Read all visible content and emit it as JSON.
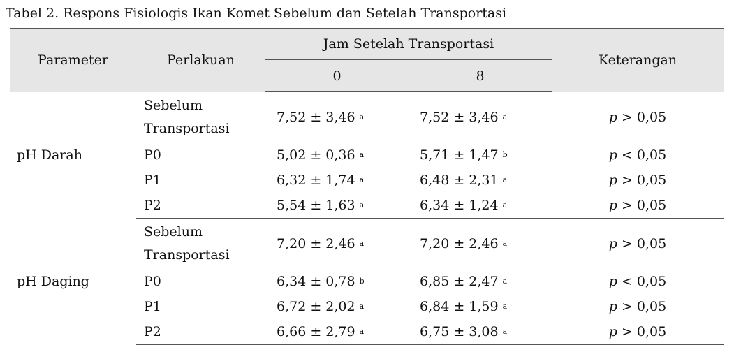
{
  "caption": "Tabel 2. Respons Fisiologis Ikan Komet Sebelum dan Setelah Transportasi",
  "table": {
    "header": {
      "parameter": "Parameter",
      "perlakuan": "Perlakuan",
      "group": "Jam Setelah Transportasi",
      "hours": [
        "0",
        "8"
      ],
      "keterangan": "Keterangan"
    },
    "groups": [
      {
        "parameter": "pH Darah",
        "rows": [
          {
            "perlakuan": "Sebelum Transportasi",
            "cells": [
              {
                "value": "7,52 ± 3,46",
                "sup": "a"
              },
              {
                "value": "7,52 ± 3,46",
                "sup": "a"
              }
            ],
            "keterangan": {
              "var": "p",
              "rel": "> 0,05"
            }
          },
          {
            "perlakuan": "P0",
            "cells": [
              {
                "value": "5,02 ± 0,36",
                "sup": "a"
              },
              {
                "value": "5,71 ± 1,47",
                "sup": "b"
              }
            ],
            "keterangan": {
              "var": "p",
              "rel": "< 0,05"
            }
          },
          {
            "perlakuan": "P1",
            "cells": [
              {
                "value": "6,32 ± 1,74",
                "sup": "a"
              },
              {
                "value": "6,48 ± 2,31",
                "sup": "a"
              }
            ],
            "keterangan": {
              "var": "p",
              "rel": "> 0,05"
            }
          },
          {
            "perlakuan": "P2",
            "cells": [
              {
                "value": "5,54 ± 1,63",
                "sup": "a"
              },
              {
                "value": "6,34 ± 1,24",
                "sup": "a"
              }
            ],
            "keterangan": {
              "var": "p",
              "rel": "> 0,05"
            }
          }
        ]
      },
      {
        "parameter": "pH Daging",
        "rows": [
          {
            "perlakuan": "Sebelum Transportasi",
            "cells": [
              {
                "value": "7,20 ± 2,46",
                "sup": "a"
              },
              {
                "value": "7,20 ± 2,46",
                "sup": "a"
              }
            ],
            "keterangan": {
              "var": "p",
              "rel": "> 0,05"
            }
          },
          {
            "perlakuan": "P0",
            "cells": [
              {
                "value": "6,34 ± 0,78",
                "sup": "b"
              },
              {
                "value": "6,85 ± 2,47",
                "sup": "a"
              }
            ],
            "keterangan": {
              "var": "p",
              "rel": "< 0,05"
            }
          },
          {
            "perlakuan": "P1",
            "cells": [
              {
                "value": "6,72 ± 2,02",
                "sup": "a"
              },
              {
                "value": "6,84 ± 1,59",
                "sup": "a"
              }
            ],
            "keterangan": {
              "var": "p",
              "rel": "> 0,05"
            }
          },
          {
            "perlakuan": "P2",
            "cells": [
              {
                "value": "6,66 ± 2,79",
                "sup": "a"
              },
              {
                "value": "6,75 ± 3,08",
                "sup": "a"
              }
            ],
            "keterangan": {
              "var": "p",
              "rel": "> 0,05"
            }
          }
        ]
      }
    ]
  }
}
